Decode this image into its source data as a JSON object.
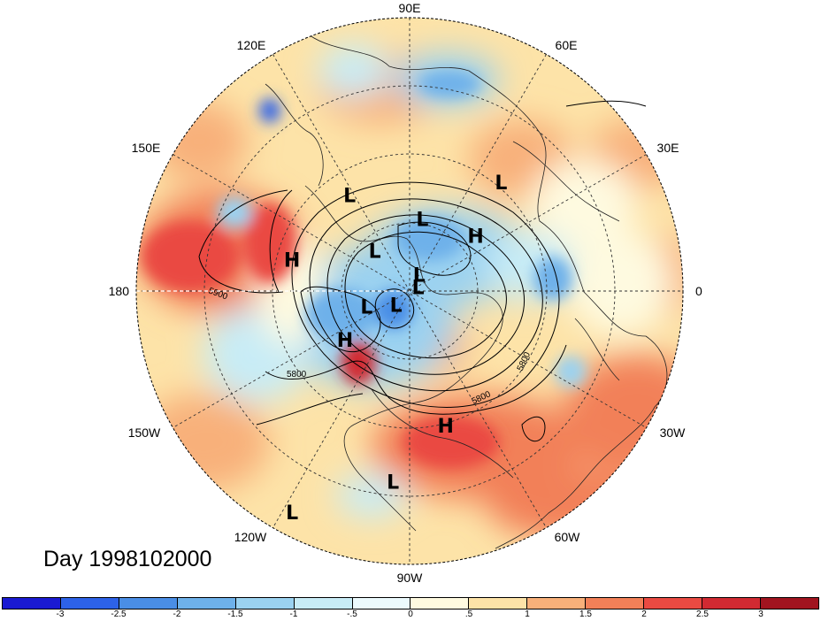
{
  "title": "Day 1998102000",
  "longitude_labels": [
    "90E",
    "60E",
    "30E",
    "0",
    "30W",
    "60W",
    "90W",
    "120W",
    "150W",
    "180",
    "150E",
    "120E"
  ],
  "contour_labels": [
    "5900",
    "5800",
    "5800",
    "5800"
  ],
  "pressure_centers": [
    {
      "type": "L",
      "lat": 60,
      "lon": 80
    },
    {
      "type": "L",
      "lat": 35,
      "lon": 50
    },
    {
      "type": "H",
      "lat": 55,
      "lon": 40
    },
    {
      "type": "L",
      "lat": 45,
      "lon": 122
    },
    {
      "type": "H",
      "lat": 42,
      "lon": 165
    },
    {
      "type": "L",
      "lat": 68,
      "lon": 131
    },
    {
      "type": "L",
      "lat": 82,
      "lon": 60
    },
    {
      "type": "L",
      "lat": 86,
      "lon": 26
    },
    {
      "type": "L",
      "lat": 71,
      "lon": -160
    },
    {
      "type": "L",
      "lat": 82,
      "lon": -135
    },
    {
      "type": "H",
      "lat": 57,
      "lon": -143
    },
    {
      "type": "H",
      "lat": 36,
      "lon": -75
    },
    {
      "type": "L",
      "lat": 20,
      "lon": -95
    },
    {
      "type": "L",
      "lat": 5,
      "lon": -118
    }
  ],
  "colorbar": {
    "ticks": [
      "-3",
      "-2.5",
      "-2",
      "-1.5",
      "-1",
      "-.5",
      "0",
      ".5",
      "1",
      "1.5",
      "2",
      "2.5",
      "3"
    ],
    "colors": [
      "#1a1ad2",
      "#2d62e8",
      "#4a8ee6",
      "#6eb1ea",
      "#9bd2f0",
      "#c8ecf6",
      "#ecfafd",
      "#fefae0",
      "#fde3a8",
      "#f8b07a",
      "#f28058",
      "#ea4a42",
      "#d12a32",
      "#a1141f"
    ]
  }
}
